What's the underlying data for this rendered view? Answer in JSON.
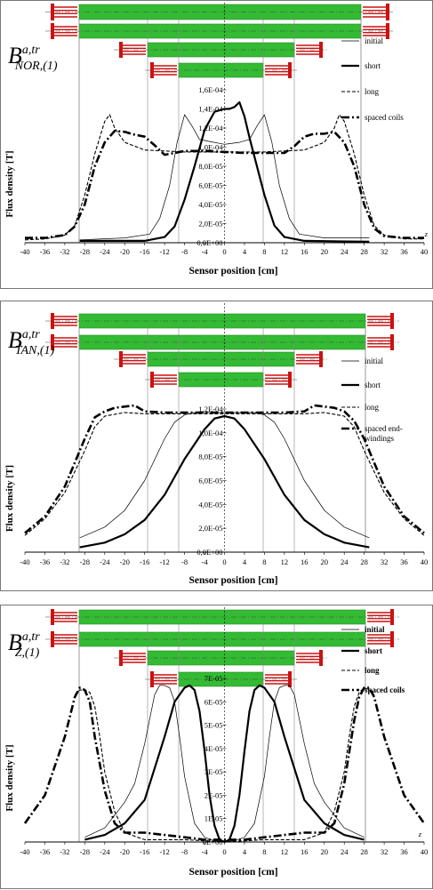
{
  "chart_data": [
    {
      "type": "line",
      "title_main": "B",
      "title_sup": "a,tr",
      "title_sub": "NOR,(1)",
      "xlabel": "Sensor position [cm]",
      "ylabel": "Flux density [T]",
      "axis_end_label": "z",
      "xlim": [
        -40,
        40
      ],
      "ylim": [
        0,
        0.00016
      ],
      "x_ticks": [
        "-40",
        "-36",
        "-32",
        "-28",
        "-24",
        "-20",
        "-16",
        "-12",
        "-8",
        "-4",
        "0",
        "4",
        "8",
        "12",
        "16",
        "20",
        "24",
        "28",
        "32",
        "36",
        "40"
      ],
      "y_ticks": [
        "0,0E+00",
        "2,0E-05",
        "4,0E-05",
        "6,0E-05",
        "8,0E-05",
        "1,0E-04",
        "1,2E-04",
        "1,4E-04",
        "1,6E-04"
      ],
      "legend_position": "top-right",
      "series": [
        {
          "name": "initial",
          "x": [
            -29,
            -20,
            -15,
            -13,
            -11,
            -9.5,
            -8,
            -6.5,
            -5,
            -3,
            0,
            3,
            5,
            6.5,
            8,
            9.5,
            11,
            13,
            15,
            20,
            29
          ],
          "values": [
            3e-06,
            5e-06,
            9e-06,
            2.5e-05,
            6e-05,
            0.000105,
            0.000134,
            0.000122,
            0.000108,
            0.000106,
            0.000103,
            0.000105,
            0.000108,
            0.000122,
            0.000134,
            0.000105,
            6e-05,
            2.5e-05,
            9e-06,
            5e-06,
            5e-06
          ]
        },
        {
          "name": "short",
          "x": [
            -29,
            -16,
            -12,
            -10,
            -8,
            -6,
            -4,
            -2,
            0,
            1,
            2,
            3,
            4,
            5,
            6,
            8,
            10,
            12,
            16,
            29
          ],
          "values": [
            2e-06,
            2e-06,
            6e-06,
            1.7e-05,
            4.5e-05,
            8e-05,
            0.000118,
            0.000137,
            0.00014,
            0.00014,
            0.000142,
            0.000147,
            0.000132,
            0.00011,
            9e-05,
            5e-05,
            1.8e-05,
            6e-06,
            2e-06,
            1e-06
          ]
        },
        {
          "name": "long",
          "x": [
            -40,
            -36,
            -32,
            -30,
            -28,
            -26,
            -24,
            -23,
            -22,
            -20,
            -16,
            -12,
            -8,
            -4,
            0,
            4,
            8,
            12,
            16,
            20,
            22,
            23,
            24,
            26,
            28,
            30,
            32,
            36,
            40
          ],
          "values": [
            3e-06,
            4e-06,
            8e-06,
            1.8e-05,
            5e-05,
            9.3e-05,
            0.000127,
            0.000134,
            0.00012,
            0.000105,
            9.7e-05,
            9.6e-05,
            9.5e-05,
            9.5e-05,
            9.5e-05,
            9.5e-05,
            9.5e-05,
            9.6e-05,
            9.7e-05,
            0.000105,
            0.00012,
            0.000134,
            0.000127,
            9.3e-05,
            5e-05,
            1.8e-05,
            8e-06,
            4e-06,
            4e-06
          ]
        },
        {
          "name": "spaced coils",
          "x": [
            -40,
            -36,
            -32,
            -30,
            -28,
            -26,
            -24,
            -22,
            -20,
            -18,
            -16,
            -14,
            -12,
            -10,
            -8,
            -4,
            0,
            4,
            8,
            10,
            12,
            14,
            16,
            18,
            20,
            22,
            24,
            26,
            28,
            30,
            32,
            36,
            40
          ],
          "values": [
            5e-06,
            5e-06,
            8e-06,
            1.7e-05,
            4e-05,
            8e-05,
            0.000105,
            0.000117,
            0.000116,
            0.000113,
            0.000111,
            0.000102,
            9.2e-05,
            9.4e-05,
            9.6e-05,
            9.6e-05,
            9.5e-05,
            9.4e-05,
            9.4e-05,
            9.4e-05,
            9.4e-05,
            0.000101,
            0.000111,
            0.000114,
            0.000114,
            0.000116,
            0.000105,
            8e-05,
            4e-05,
            1.5e-05,
            7e-06,
            5e-06,
            5e-06
          ]
        }
      ]
    },
    {
      "type": "line",
      "title_main": "B",
      "title_sup": "a,tr",
      "title_sub": "TAN,(1)",
      "xlabel": "Sensor position [cm]",
      "ylabel": "Flux density [T]",
      "axis_end_label": "",
      "xlim": [
        -40,
        40
      ],
      "ylim": [
        0,
        0.00012
      ],
      "x_ticks": [
        "-40",
        "-36",
        "-32",
        "-28",
        "-24",
        "-20",
        "-16",
        "-12",
        "-8",
        "-4",
        "0",
        "4",
        "8",
        "12",
        "16",
        "20",
        "24",
        "28",
        "32",
        "36",
        "40"
      ],
      "y_ticks": [
        "0,0E+00",
        "2,0E-05",
        "4,0E-05",
        "6,0E-05",
        "8,0E-05",
        "1,0E-04",
        "1,2E-04"
      ],
      "legend_position": "top-right",
      "series": [
        {
          "name": "initial",
          "x": [
            -29,
            -24,
            -20,
            -16,
            -12,
            -10,
            -8,
            -6,
            -4,
            -2,
            0,
            2,
            4,
            6,
            8,
            10,
            12,
            16,
            20,
            24,
            29
          ],
          "values": [
            1.2e-05,
            2.1e-05,
            3.5e-05,
            6e-05,
            9.5e-05,
            0.000109,
            0.000115,
            0.000117,
            0.000117,
            0.000117,
            0.000117,
            0.000117,
            0.000117,
            0.000117,
            0.000115,
            0.000109,
            9.5e-05,
            6e-05,
            3.5e-05,
            2.1e-05,
            1.2e-05
          ]
        },
        {
          "name": "short",
          "x": [
            -29,
            -24,
            -20,
            -16,
            -12,
            -8,
            -4,
            -2,
            0,
            2,
            4,
            8,
            12,
            16,
            20,
            24,
            29
          ],
          "values": [
            4e-06,
            8e-06,
            1.5e-05,
            2.7e-05,
            4.8e-05,
            7.8e-05,
            0.000103,
            0.000112,
            0.000114,
            0.000112,
            0.000103,
            7.8e-05,
            4.8e-05,
            2.7e-05,
            1.5e-05,
            8e-06,
            4e-06
          ]
        },
        {
          "name": "long",
          "x": [
            -40,
            -36,
            -32,
            -28,
            -26,
            -24,
            -20,
            -16,
            -12,
            -8,
            -4,
            0,
            4,
            8,
            12,
            16,
            20,
            24,
            26,
            28,
            32,
            36,
            40
          ],
          "values": [
            1.4e-05,
            2.8e-05,
            5e-05,
            8.5e-05,
            0.000105,
            0.000114,
            0.000117,
            0.000116,
            0.000116,
            0.000116,
            0.000116,
            0.000116,
            0.000116,
            0.000116,
            0.000116,
            0.000116,
            0.000117,
            0.000114,
            0.000105,
            8.5e-05,
            5e-05,
            2.8e-05,
            1.4e-05
          ]
        },
        {
          "name": "spaced end-\nwindings",
          "x": [
            -40,
            -36,
            -32,
            -28,
            -26,
            -24,
            -22,
            -20,
            -18,
            -16,
            -12,
            -8,
            -4,
            0,
            4,
            8,
            12,
            16,
            18,
            20,
            22,
            24,
            26,
            28,
            32,
            36,
            40
          ],
          "values": [
            1.6e-05,
            3e-05,
            5.5e-05,
            9.5e-05,
            0.000113,
            0.000118,
            0.000121,
            0.000122,
            0.000123,
            0.000118,
            0.000117,
            0.000117,
            0.000117,
            0.000117,
            0.000117,
            0.000117,
            0.000117,
            0.000118,
            0.000123,
            0.000122,
            0.000121,
            0.000118,
            0.00011,
            9.5e-05,
            5.5e-05,
            3e-05,
            1.6e-05
          ]
        }
      ]
    },
    {
      "type": "line",
      "title_main": "B",
      "title_sup": "a,tr",
      "title_sub": "Z,(1)",
      "xlabel": "Sensor position [cm]",
      "ylabel": "Flux density [T]",
      "axis_end_label": "z",
      "xlim": [
        -40,
        40
      ],
      "ylim": [
        0,
        7e-05
      ],
      "x_ticks": [
        "-40",
        "-36",
        "-32",
        "-28",
        "-24",
        "-20",
        "-16",
        "-12",
        "-8",
        "-4",
        "0",
        "4",
        "8",
        "12",
        "16",
        "20",
        "24",
        "28",
        "32",
        "36",
        "40"
      ],
      "y_ticks": [
        "0E+00",
        "1E-05",
        "2E-05",
        "3E-05",
        "4E-05",
        "5E-05",
        "6E-05",
        "7E-05"
      ],
      "legend_position": "top-right",
      "series": [
        {
          "name": "initial",
          "x": [
            -28,
            -24,
            -20,
            -18,
            -16,
            -14,
            -13,
            -12,
            -11,
            -10,
            -9,
            -8,
            -6,
            -4,
            -2,
            0,
            2,
            4,
            6,
            8,
            9,
            10,
            11,
            12,
            13,
            14,
            16,
            18,
            20,
            24,
            28
          ],
          "values": [
            2e-06,
            6e-06,
            1.7e-05,
            2.5e-05,
            4.2e-05,
            6.3e-05,
            6.7e-05,
            6.7e-05,
            6.6e-05,
            6e-05,
            4.5e-05,
            2.8e-05,
            8e-06,
            2e-06,
            5e-07,
            1e-07,
            5e-07,
            2e-06,
            8e-06,
            2.8e-05,
            4.5e-05,
            6e-05,
            6.6e-05,
            6.7e-05,
            6.7e-05,
            6.3e-05,
            4.2e-05,
            2.5e-05,
            1.7e-05,
            6e-06,
            2e-06
          ]
        },
        {
          "name": "short",
          "x": [
            -28,
            -24,
            -20,
            -16,
            -12,
            -10,
            -8,
            -7,
            -6,
            -5,
            -4,
            -3,
            -2,
            -1,
            0,
            1,
            2,
            3,
            4,
            5,
            6,
            7,
            8,
            10,
            12,
            16,
            20,
            24,
            28
          ],
          "values": [
            1e-06,
            3e-06,
            8e-06,
            1.8e-05,
            4.5e-05,
            6e-05,
            6.6e-05,
            6.7e-05,
            6.5e-05,
            5.6e-05,
            3.9e-05,
            2e-05,
            7e-06,
            1e-06,
            0,
            1e-06,
            7e-06,
            2e-05,
            3.9e-05,
            5.6e-05,
            6.5e-05,
            6.7e-05,
            6.6e-05,
            6e-05,
            4.5e-05,
            1.8e-05,
            8e-06,
            3e-06,
            1e-06
          ]
        },
        {
          "name": "long",
          "x": [
            -30,
            -29,
            -28,
            -27,
            -26,
            -25,
            -24,
            -22,
            -20,
            -16,
            -8,
            0,
            8,
            16,
            20,
            22,
            24,
            25,
            26,
            27,
            28,
            29,
            30
          ],
          "values": [
            6.3e-05,
            6.5e-05,
            6.5e-05,
            6.4e-05,
            5.8e-05,
            4.5e-05,
            3e-05,
            1.3e-05,
            4e-06,
            1e-06,
            1e-06,
            0,
            1e-06,
            1e-06,
            4e-06,
            1.3e-05,
            3e-05,
            4.5e-05,
            5.8e-05,
            6.4e-05,
            6.6e-05,
            6.5e-05,
            6.3e-05
          ]
        },
        {
          "name": "spaced coils",
          "x": [
            -40,
            -36,
            -32,
            -30,
            -29,
            -28,
            -27,
            -26,
            -24,
            -22,
            -20,
            -18,
            -16,
            -12,
            -8,
            -4,
            0,
            4,
            8,
            12,
            16,
            18,
            20,
            22,
            24,
            26,
            27,
            28,
            29,
            30,
            32,
            36,
            40
          ],
          "values": [
            8e-06,
            2e-05,
            4.5e-05,
            6.2e-05,
            6.6e-05,
            6.5e-05,
            6e-05,
            4.5e-05,
            2.2e-05,
            8e-06,
            4e-06,
            4e-06,
            4e-06,
            3e-06,
            2e-06,
            1e-06,
            1e-06,
            1e-06,
            2e-06,
            3e-06,
            4e-06,
            4e-06,
            4e-06,
            8e-06,
            2.5e-05,
            5.2e-05,
            6.2e-05,
            6.6e-05,
            6.6e-05,
            6.2e-05,
            4.5e-05,
            2e-05,
            8e-06
          ]
        }
      ]
    }
  ]
}
